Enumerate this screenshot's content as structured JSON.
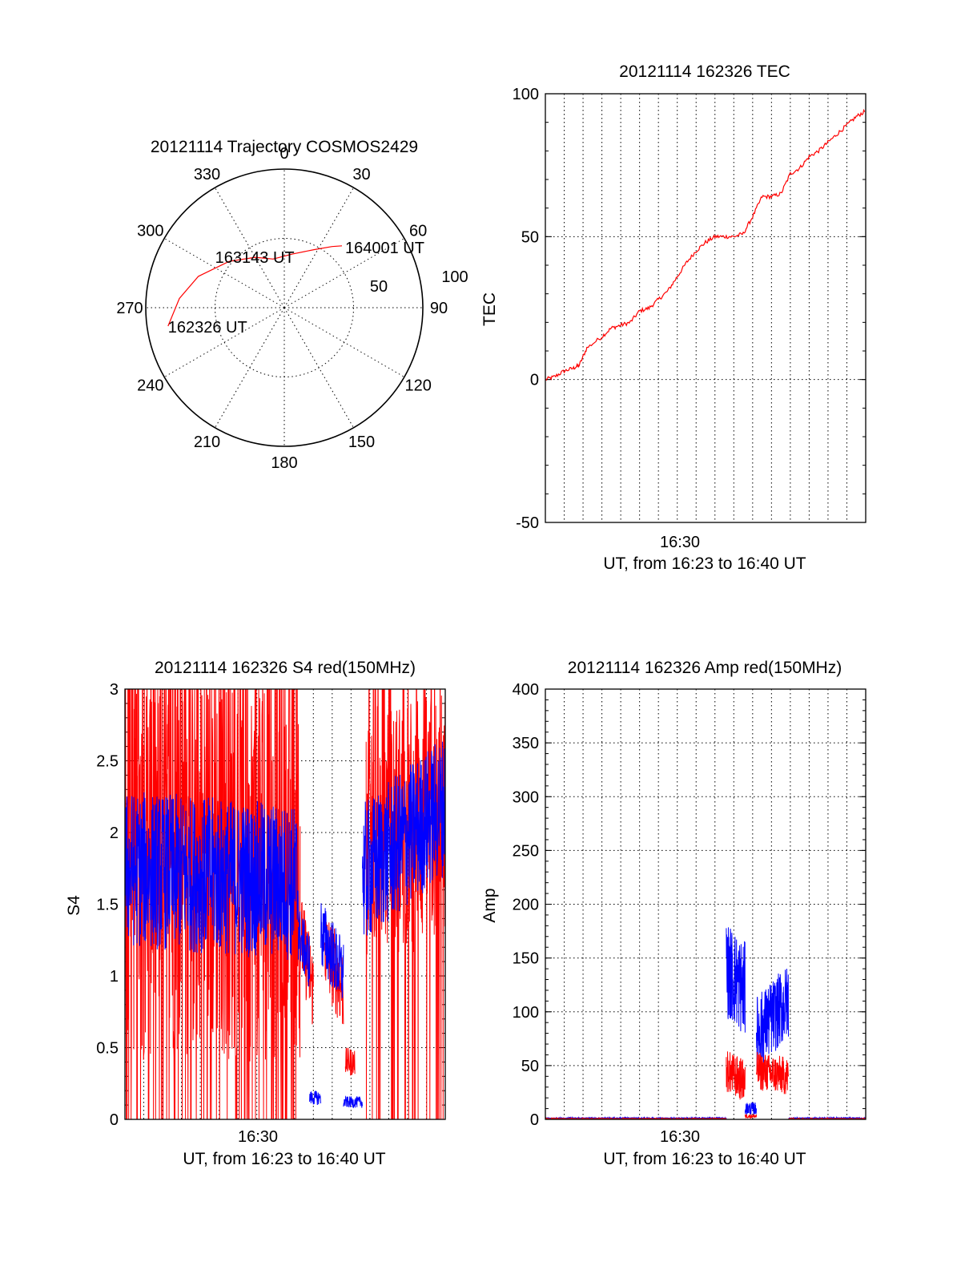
{
  "chart_data": [
    {
      "type": "polar",
      "title": "20121114 Trajectory COSMOS2429",
      "azimuth_labels": [
        "0",
        "30",
        "60",
        "90",
        "120",
        "150",
        "180",
        "210",
        "240",
        "270",
        "300",
        "330"
      ],
      "radius_labels": [
        "50",
        "100"
      ],
      "trajectory": {
        "color": "#ff0000",
        "points_az_zen": [
          [
            261,
            85
          ],
          [
            275,
            76
          ],
          [
            290,
            66
          ],
          [
            310,
            52
          ],
          [
            330,
            42
          ],
          [
            347,
            36
          ],
          [
            8,
            39
          ],
          [
            27,
            47
          ],
          [
            38,
            56
          ],
          [
            43,
            61
          ]
        ]
      },
      "point_labels": [
        {
          "text": "162326 UT",
          "az": 261,
          "zen": 85
        },
        {
          "text": "163143 UT",
          "az": 330,
          "zen": 42
        },
        {
          "text": "164001 UT",
          "az": 43,
          "zen": 61
        }
      ]
    },
    {
      "type": "line",
      "title": "20121114 162326 TEC",
      "ylabel": "TEC",
      "xlabel": "UT, from 16:23 to 16:40 UT",
      "xtick_labels": [
        "16:30"
      ],
      "ylim": [
        -50,
        100
      ],
      "yticks": [
        "100",
        "50",
        "0",
        "-50"
      ],
      "xlim_minutes": [
        0,
        17
      ],
      "series": [
        {
          "color": "#ff0000",
          "x": [
            0,
            0.5,
            1.0,
            1.5,
            1.8,
            2.2,
            3.0,
            3.5,
            4.0,
            4.5,
            5.0,
            5.5,
            6.0,
            6.5,
            7.0,
            7.5,
            8.0,
            8.5,
            9.0,
            9.5,
            10.0,
            10.5,
            11.0,
            11.5,
            12.0,
            12.5,
            13.0,
            13.5,
            14.0,
            14.5,
            15.0,
            15.5,
            16.0,
            16.5,
            17.0
          ],
          "y": [
            0,
            1,
            3,
            4,
            5,
            11,
            15,
            18,
            19,
            20,
            24,
            25,
            28,
            31,
            36,
            41,
            45,
            48,
            50,
            50,
            50,
            51,
            57,
            64,
            64,
            65,
            72,
            74,
            78,
            80,
            83,
            86,
            89,
            92,
            94
          ]
        }
      ]
    },
    {
      "type": "line",
      "title": "20121114 162326 S4 red(150MHz)",
      "ylabel": "S4",
      "xlabel": "UT, from 16:23 to 16:40 UT",
      "xtick_labels": [
        "16:30"
      ],
      "ylim": [
        0,
        3
      ],
      "yticks": [
        "3",
        "2.5",
        "2",
        "1.5",
        "1",
        "0.5",
        "0"
      ],
      "xlim_minutes": [
        0,
        17
      ],
      "series": [
        {
          "color": "#ff0000",
          "segments": [
            {
              "x": [
                0,
                9.3
              ],
              "y": [
                1.8,
                1.8
              ],
              "noise": 1.4,
              "spikes": true
            },
            {
              "x": [
                9.3,
                10.0
              ],
              "y": [
                1.3,
                0.9
              ],
              "noise": 0.3
            },
            {
              "x": [
                10.6,
                11.6
              ],
              "y": [
                1.2,
                0.9
              ],
              "noise": 0.3
            },
            {
              "x": [
                11.7,
                12.2
              ],
              "y": [
                0.4,
                0.4
              ],
              "noise": 0.1
            },
            {
              "x": [
                12.8,
                17
              ],
              "y": [
                2.0,
                2.1
              ],
              "noise": 0.9,
              "spikes": true
            }
          ]
        },
        {
          "color": "#0000ff",
          "segments": [
            {
              "x": [
                0,
                9.2
              ],
              "y": [
                1.75,
                1.65
              ],
              "noise": 0.55
            },
            {
              "x": [
                9.2,
                9.8
              ],
              "y": [
                1.3,
                1.1
              ],
              "noise": 0.2
            },
            {
              "x": [
                9.8,
                10.4
              ],
              "y": [
                0.15,
                0.15
              ],
              "noise": 0.05
            },
            {
              "x": [
                10.4,
                11.6
              ],
              "y": [
                1.3,
                1.0
              ],
              "noise": 0.25
            },
            {
              "x": [
                11.6,
                12.6
              ],
              "y": [
                0.12,
                0.12
              ],
              "noise": 0.04
            },
            {
              "x": [
                12.6,
                17
              ],
              "y": [
                1.7,
                2.2
              ],
              "noise": 0.5
            }
          ]
        }
      ]
    },
    {
      "type": "line",
      "title": "20121114 162326 Amp red(150MHz)",
      "ylabel": "Amp",
      "xlabel": "UT, from 16:23 to 16:40 UT",
      "xtick_labels": [
        "16:30"
      ],
      "ylim": [
        0,
        400
      ],
      "yticks": [
        "400",
        "350",
        "300",
        "250",
        "200",
        "150",
        "100",
        "50",
        "0"
      ],
      "xlim_minutes": [
        0,
        17
      ],
      "series": [
        {
          "color": "#ff0000",
          "segments": [
            {
              "x": [
                0,
                9.6
              ],
              "y": [
                0.5,
                0.5
              ],
              "noise": 0.5
            },
            {
              "x": [
                9.6,
                10.6
              ],
              "y": [
                45,
                35
              ],
              "noise": 20
            },
            {
              "x": [
                10.6,
                11.2
              ],
              "y": [
                3,
                3
              ],
              "noise": 2
            },
            {
              "x": [
                11.2,
                12.9
              ],
              "y": [
                45,
                40
              ],
              "noise": 18
            },
            {
              "x": [
                12.9,
                17
              ],
              "y": [
                0.5,
                0.5
              ],
              "noise": 0.5
            }
          ]
        },
        {
          "color": "#0000ff",
          "segments": [
            {
              "x": [
                0,
                9.6
              ],
              "y": [
                1,
                1
              ],
              "noise": 0.7
            },
            {
              "x": [
                9.6,
                10.6
              ],
              "y": [
                140,
                120
              ],
              "noise": 45
            },
            {
              "x": [
                10.6,
                11.2
              ],
              "y": [
                10,
                10
              ],
              "noise": 6
            },
            {
              "x": [
                11.2,
                12.9
              ],
              "y": [
                80,
                110
              ],
              "noise": 35
            },
            {
              "x": [
                12.9,
                17
              ],
              "y": [
                1,
                1
              ],
              "noise": 0.7
            }
          ]
        }
      ]
    }
  ]
}
